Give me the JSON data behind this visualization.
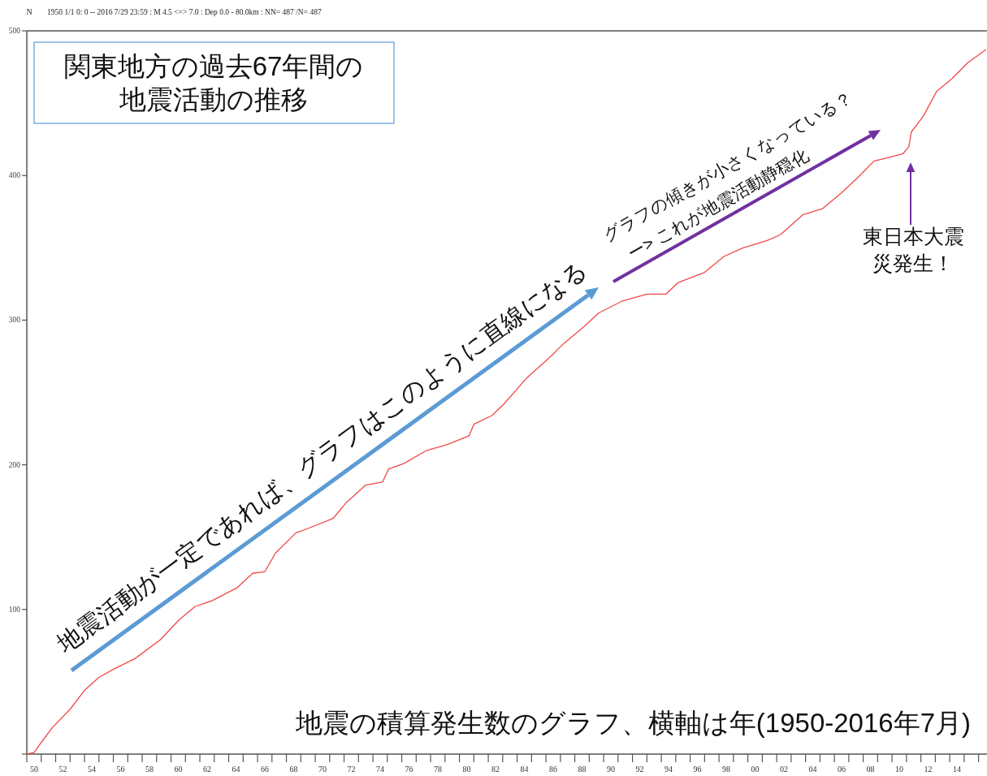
{
  "chart_data": {
    "type": "line",
    "title": "関東地方の過去67年間の地震活動の推移",
    "subtitle": "1950 1/1 0: 0 -- 2016 7/29 23:59  : M 4.5 <=> 7.0  : Dep 0.0 - 80.0km : NN= 487 /N= 487",
    "ylabel": "N",
    "xlim": [
      "1950-01",
      "2016-08"
    ],
    "ylim": [
      0,
      500
    ],
    "xticks": [
      {
        "value": "1950-01",
        "label": null
      },
      {
        "value": "1950-07",
        "label": "50"
      },
      {
        "value": "1951-01",
        "label": null
      },
      {
        "value": "1952-01",
        "label": null
      },
      {
        "value": "1952-07",
        "label": "52"
      },
      {
        "value": "1953-01",
        "label": null
      },
      {
        "value": "1954-01",
        "label": null
      },
      {
        "value": "1954-07",
        "label": "54"
      },
      {
        "value": "1955-01",
        "label": null
      },
      {
        "value": "1956-01",
        "label": null
      },
      {
        "value": "1956-07",
        "label": "56"
      },
      {
        "value": "1957-01",
        "label": null
      },
      {
        "value": "1958-01",
        "label": null
      },
      {
        "value": "1958-07",
        "label": "58"
      },
      {
        "value": "1959-01",
        "label": null
      },
      {
        "value": "1960-01",
        "label": null
      },
      {
        "value": "1960-07",
        "label": "60"
      },
      {
        "value": "1961-01",
        "label": null
      },
      {
        "value": "1962-01",
        "label": null
      },
      {
        "value": "1962-07",
        "label": "62"
      },
      {
        "value": "1963-01",
        "label": null
      },
      {
        "value": "1964-01",
        "label": null
      },
      {
        "value": "1964-07",
        "label": "64"
      },
      {
        "value": "1965-01",
        "label": null
      },
      {
        "value": "1966-01",
        "label": null
      },
      {
        "value": "1966-07",
        "label": "66"
      },
      {
        "value": "1967-01",
        "label": null
      },
      {
        "value": "1968-01",
        "label": null
      },
      {
        "value": "1968-07",
        "label": "68"
      },
      {
        "value": "1969-01",
        "label": null
      },
      {
        "value": "1970-01",
        "label": null
      },
      {
        "value": "1970-07",
        "label": "70"
      },
      {
        "value": "1971-01",
        "label": null
      },
      {
        "value": "1972-01",
        "label": null
      },
      {
        "value": "1972-07",
        "label": "72"
      },
      {
        "value": "1973-01",
        "label": null
      },
      {
        "value": "1974-01",
        "label": null
      },
      {
        "value": "1974-07",
        "label": "74"
      },
      {
        "value": "1975-01",
        "label": null
      },
      {
        "value": "1976-01",
        "label": null
      },
      {
        "value": "1976-07",
        "label": "76"
      },
      {
        "value": "1977-01",
        "label": null
      },
      {
        "value": "1978-01",
        "label": null
      },
      {
        "value": "1978-07",
        "label": "78"
      },
      {
        "value": "1979-01",
        "label": null
      },
      {
        "value": "1980-01",
        "label": null
      },
      {
        "value": "1980-07",
        "label": "80"
      },
      {
        "value": "1981-01",
        "label": null
      },
      {
        "value": "1982-01",
        "label": null
      },
      {
        "value": "1982-07",
        "label": "82"
      },
      {
        "value": "1983-01",
        "label": null
      },
      {
        "value": "1984-01",
        "label": null
      },
      {
        "value": "1984-07",
        "label": "84"
      },
      {
        "value": "1985-01",
        "label": null
      },
      {
        "value": "1986-01",
        "label": null
      },
      {
        "value": "1986-07",
        "label": "86"
      },
      {
        "value": "1987-01",
        "label": null
      },
      {
        "value": "1988-01",
        "label": null
      },
      {
        "value": "1988-07",
        "label": "88"
      },
      {
        "value": "1989-01",
        "label": null
      },
      {
        "value": "1990-01",
        "label": null
      },
      {
        "value": "1990-07",
        "label": "90"
      },
      {
        "value": "1991-01",
        "label": null
      },
      {
        "value": "1992-01",
        "label": null
      },
      {
        "value": "1992-07",
        "label": "92"
      },
      {
        "value": "1993-01",
        "label": null
      },
      {
        "value": "1994-01",
        "label": null
      },
      {
        "value": "1994-07",
        "label": "94"
      },
      {
        "value": "1995-01",
        "label": null
      },
      {
        "value": "1996-01",
        "label": null
      },
      {
        "value": "1996-07",
        "label": "96"
      },
      {
        "value": "1997-01",
        "label": null
      },
      {
        "value": "1998-01",
        "label": null
      },
      {
        "value": "1998-07",
        "label": "98"
      },
      {
        "value": "1999-01",
        "label": null
      },
      {
        "value": "2000-01",
        "label": null
      },
      {
        "value": "2000-07",
        "label": "00"
      },
      {
        "value": "2001-01",
        "label": null
      },
      {
        "value": "2002-01",
        "label": null
      },
      {
        "value": "2002-07",
        "label": "02"
      },
      {
        "value": "2003-01",
        "label": null
      },
      {
        "value": "2004-01",
        "label": null
      },
      {
        "value": "2004-07",
        "label": "04"
      },
      {
        "value": "2005-01",
        "label": null
      },
      {
        "value": "2006-01",
        "label": null
      },
      {
        "value": "2006-07",
        "label": "06"
      },
      {
        "value": "2007-01",
        "label": null
      },
      {
        "value": "2008-01",
        "label": null
      },
      {
        "value": "2008-07",
        "label": "08"
      },
      {
        "value": "2009-01",
        "label": null
      },
      {
        "value": "2010-01",
        "label": null
      },
      {
        "value": "2010-07",
        "label": "10"
      },
      {
        "value": "2011-01",
        "label": null
      },
      {
        "value": "2012-01",
        "label": null
      },
      {
        "value": "2012-07",
        "label": "12"
      },
      {
        "value": "2013-01",
        "label": null
      },
      {
        "value": "2014-01",
        "label": null
      },
      {
        "value": "2014-07",
        "label": "14"
      },
      {
        "value": "2015-01",
        "label": null
      },
      {
        "value": "2016-01",
        "label": null
      }
    ],
    "yticks": [
      {
        "value": 0,
        "label": null
      },
      100,
      200,
      300,
      400,
      500
    ],
    "grid": false,
    "marker": "none",
    "line_style": "solid",
    "series": [
      {
        "color": "#f04848",
        "x": [
          "1950-01",
          "1950-07",
          "1951-01",
          "1951-10",
          "1953-01",
          "1954-01",
          "1955-01",
          "1956-02",
          "1957-07",
          "1959-04",
          "1960-08",
          "1961-09",
          "1962-11",
          "1964-08",
          "1965-09",
          "1966-07",
          "1967-04",
          "1968-09",
          "1969-07",
          "1971-04",
          "1972-03",
          "1973-07",
          "1974-09",
          "1975-02",
          "1976-03",
          "1977-10",
          "1979-03",
          "1980-09",
          "1981-01",
          "1982-04",
          "1983-02",
          "1984-09",
          "1986-05",
          "1987-04",
          "1988-08",
          "1989-09",
          "1991-04",
          "1993-01",
          "1994-05",
          "1995-03",
          "1997-01",
          "1998-05",
          "1999-09",
          "2001-05",
          "2002-04",
          "2003-11",
          "2005-03",
          "2006-07",
          "2007-09",
          "2008-10",
          "2009-08",
          "2010-10",
          "2011-03",
          "2011-05",
          "2012-03",
          "2013-02",
          "2014-03",
          "2015-04",
          "2016-07"
        ],
        "values": [
          0,
          1,
          8,
          18,
          31,
          44,
          53,
          59,
          66,
          79,
          93,
          102,
          106,
          115,
          125,
          126,
          139,
          153,
          156,
          163,
          174,
          186,
          188,
          197,
          201,
          210,
          214,
          220,
          228,
          234,
          242,
          260,
          275,
          284,
          295,
          305,
          313,
          318,
          318,
          326,
          333,
          344,
          350,
          355,
          359,
          373,
          377,
          388,
          399,
          410,
          412,
          415,
          420,
          430,
          441,
          458,
          467,
          478,
          487
        ]
      }
    ],
    "annotations": [
      "地震活動が一定であれば、グラフはこのように直線になる",
      "グラフの傾きが小さくなっている？",
      "ー>  これが地震活動静穏化",
      "東日本大震災発生！",
      "地震の積算発生数のグラフ、横軸は年(1950-2016年7月)"
    ]
  }
}
